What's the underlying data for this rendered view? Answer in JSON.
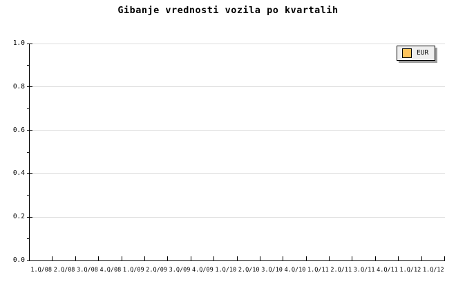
{
  "chart_data": {
    "type": "line",
    "title": "Gibanje vrednosti vozila po kvartalih",
    "categories": [
      "1.Q/08",
      "2.Q/08",
      "3.Q/08",
      "4.Q/08",
      "1.Q/09",
      "2.Q/09",
      "3.Q/09",
      "4.Q/09",
      "1.Q/10",
      "2.Q/10",
      "3.Q/10",
      "4.Q/10",
      "1.Q/11",
      "2.Q/11",
      "3.Q/11",
      "4.Q/11",
      "1.Q/12",
      "1.Q/12"
    ],
    "series": [
      {
        "name": "EUR",
        "color": "#FFC45C",
        "values": []
      }
    ],
    "xlabel": "",
    "ylabel": "",
    "ylim": [
      0.0,
      1.0
    ],
    "y_major_ticks": [
      0.0,
      0.2,
      0.4,
      0.6,
      0.8,
      1.0
    ],
    "y_minor_step": 0.1,
    "grid": "horizontal-major-only",
    "legend_position": "top-right"
  },
  "colors": {
    "background": "#FFFFFF",
    "axis": "#000000",
    "gridline": "#DDDDDD",
    "text": "#000000",
    "legend_fill": "#EFEFEF",
    "legend_border": "#000000",
    "legend_shadow": "#9E9E9E",
    "series_eur": "#FFC45C"
  }
}
